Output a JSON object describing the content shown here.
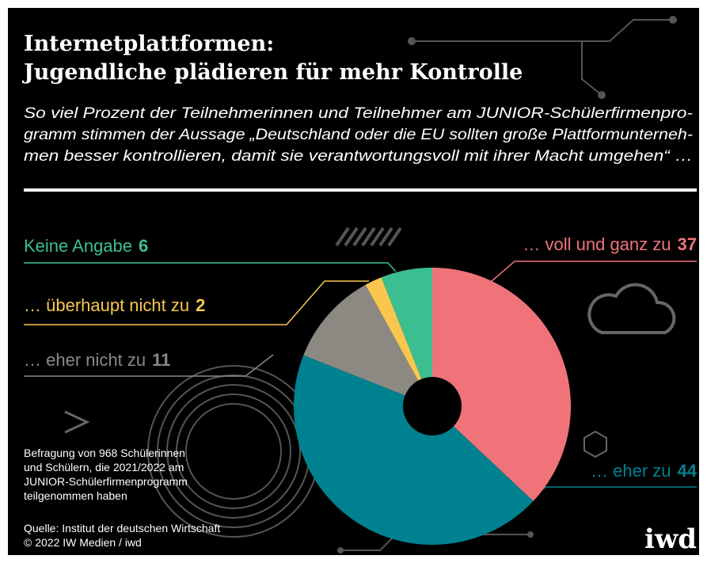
{
  "chart_data": {
    "type": "pie",
    "title": [
      "Internetplattformen:",
      "Jugendliche plädieren für mehr Kontrolle"
    ],
    "subtitle": [
      "So viel Prozent der Teilnehmerinnen und Teilnehmer am JUNIOR-Schülerfirmenpro-",
      "gramm stimmen der Aussage „Deutschland oder die EU sollten große Plattformunterneh-",
      "men besser kontrollieren, damit sie verantwortungsvoll mit ihrer Macht umgehen“ …"
    ],
    "categories": [
      "… voll und ganz zu",
      "… eher zu",
      "… eher nicht zu",
      "… überhaupt nicht zu",
      "Keine Angabe"
    ],
    "values": [
      37,
      44,
      11,
      2,
      6
    ],
    "colors": [
      "#f0737a",
      "#00818f",
      "#8c8983",
      "#f9c74f",
      "#3cbf90"
    ],
    "note": [
      "Befragung von 968 Schülerinnen",
      "und Schülern, die 2021/2022 am",
      "JUNIOR-Schülerfirmenprogramm",
      "teilgenommen haben"
    ],
    "source": [
      "Quelle: Institut der deutschen Wirtschaft",
      "© 2022 IW Medien / iwd"
    ],
    "logo": "iwd"
  }
}
